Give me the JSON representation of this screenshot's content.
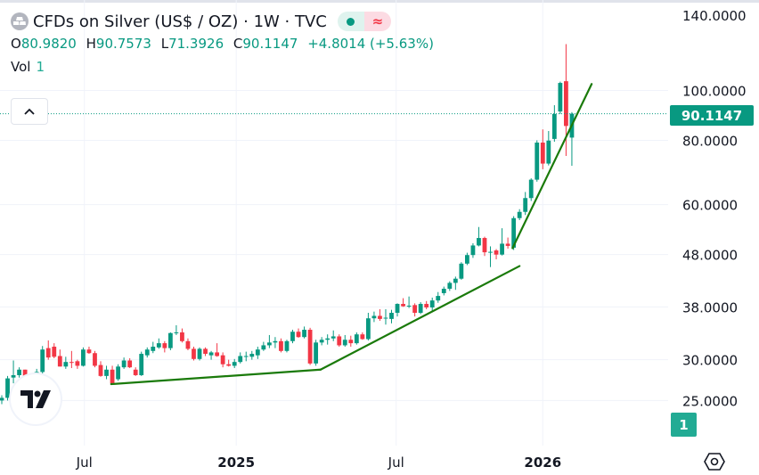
{
  "header": {
    "title": "CFDs on Silver (US$ / OZ) · 1W · TVC",
    "status_live_icon": "green-dot-icon",
    "status_delayed_icon": "wave-icon",
    "status_delayed_glyph": "≈",
    "ohlc": {
      "o_label": "O",
      "o_value": "80.9820",
      "h_label": "H",
      "h_value": "90.7573",
      "l_label": "L",
      "l_value": "71.3926",
      "c_label": "C",
      "c_value": "90.1147",
      "change": "+4.8014 (+5.63%)"
    },
    "vol_label": "Vol",
    "vol_value": "1",
    "collapse_glyph": "^"
  },
  "price_axis": {
    "last_price_label": "90.1147",
    "volume_badge": "1"
  },
  "logo_text": "TV",
  "colors": {
    "up": "#089981",
    "down": "#f23645",
    "trendline": "#1a7a0a",
    "grid": "#f0f3fa",
    "last": "#089981"
  },
  "chart_data": {
    "type": "candlestick",
    "title": "CFDs on Silver (US$ / OZ) · 1W · TVC",
    "y_scale": "log",
    "ylim": [
      22,
      140
    ],
    "y_ticks": [
      {
        "value": 140,
        "label": "140.0000"
      },
      {
        "value": 100,
        "label": "100.0000"
      },
      {
        "value": 80,
        "label": "80.0000"
      },
      {
        "value": 60,
        "label": "60.0000"
      },
      {
        "value": 48,
        "label": "48.0000"
      },
      {
        "value": 38,
        "label": "38.0000"
      },
      {
        "value": 30,
        "label": "30.0000"
      },
      {
        "value": 25,
        "label": "25.0000"
      }
    ],
    "x_ticks": [
      {
        "week": 14.2,
        "label": "Jul"
      },
      {
        "week": 40.3,
        "label": "2025"
      },
      {
        "week": 67.8,
        "label": "Jul"
      },
      {
        "week": 93,
        "label": "2026"
      }
    ],
    "last_price": 90.1147,
    "grid": true,
    "candle_fields": [
      "open",
      "high",
      "low",
      "close"
    ],
    "candles": [
      [
        25.0,
        25.6,
        24.6,
        25.3
      ],
      [
        25.3,
        27.9,
        25.0,
        27.6
      ],
      [
        27.7,
        29.9,
        27.0,
        28.0
      ],
      [
        28.0,
        29.0,
        27.7,
        28.7
      ],
      [
        28.7,
        28.7,
        27.2,
        27.4
      ],
      [
        27.4,
        28.0,
        26.8,
        27.6
      ],
      [
        27.6,
        28.8,
        27.4,
        28.4
      ],
      [
        28.4,
        31.9,
        28.2,
        31.4
      ],
      [
        31.6,
        32.7,
        30.0,
        30.3
      ],
      [
        31.8,
        32.3,
        30.2,
        30.4
      ],
      [
        30.5,
        31.4,
        29.1,
        29.1
      ],
      [
        29.1,
        30.4,
        28.8,
        29.7
      ],
      [
        29.7,
        31.2,
        28.9,
        29.6
      ],
      [
        29.8,
        30.0,
        28.8,
        29.2
      ],
      [
        29.2,
        31.7,
        29.1,
        31.4
      ],
      [
        31.4,
        31.8,
        30.8,
        30.9
      ],
      [
        30.9,
        31.2,
        29.0,
        29.2
      ],
      [
        29.3,
        29.8,
        27.8,
        27.9
      ],
      [
        27.9,
        29.2,
        27.5,
        28.7
      ],
      [
        28.7,
        29.2,
        26.8,
        27.0
      ],
      [
        27.5,
        29.4,
        27.3,
        29.1
      ],
      [
        29.0,
        30.3,
        28.8,
        29.9
      ],
      [
        29.9,
        30.2,
        28.9,
        29.0
      ],
      [
        28.7,
        29.0,
        27.9,
        28.0
      ],
      [
        28.0,
        31.1,
        27.9,
        30.8
      ],
      [
        30.6,
        31.7,
        30.3,
        31.4
      ],
      [
        31.2,
        32.5,
        30.9,
        31.8
      ],
      [
        31.7,
        33.0,
        31.5,
        32.3
      ],
      [
        32.3,
        32.6,
        31.0,
        31.6
      ],
      [
        31.6,
        33.9,
        31.3,
        33.8
      ],
      [
        33.8,
        35.0,
        33.5,
        33.9
      ],
      [
        33.9,
        34.5,
        32.4,
        32.6
      ],
      [
        32.6,
        33.0,
        31.3,
        31.5
      ],
      [
        31.5,
        31.8,
        29.9,
        30.1
      ],
      [
        30.1,
        31.7,
        29.9,
        31.5
      ],
      [
        31.5,
        31.7,
        30.5,
        30.8
      ],
      [
        30.6,
        31.2,
        30.0,
        31.0
      ],
      [
        31.0,
        32.3,
        30.4,
        30.5
      ],
      [
        30.6,
        31.0,
        29.0,
        29.4
      ],
      [
        29.4,
        30.0,
        29.1,
        29.2
      ],
      [
        29.2,
        30.1,
        28.9,
        29.7
      ],
      [
        29.7,
        31.0,
        29.5,
        30.5
      ],
      [
        30.5,
        31.1,
        29.8,
        30.5
      ],
      [
        30.4,
        31.2,
        30.0,
        30.8
      ],
      [
        30.6,
        31.8,
        30.1,
        31.4
      ],
      [
        31.4,
        32.5,
        31.2,
        32.0
      ],
      [
        32.0,
        33.5,
        31.6,
        32.4
      ],
      [
        32.4,
        33.2,
        31.6,
        32.6
      ],
      [
        32.6,
        33.0,
        31.0,
        31.2
      ],
      [
        31.2,
        32.8,
        31.0,
        32.6
      ],
      [
        32.6,
        34.3,
        32.3,
        34.0
      ],
      [
        34.0,
        34.5,
        33.1,
        33.2
      ],
      [
        33.2,
        34.8,
        33.0,
        34.3
      ],
      [
        34.3,
        34.6,
        29.3,
        29.5
      ],
      [
        29.5,
        32.8,
        29.2,
        32.4
      ],
      [
        32.4,
        33.2,
        32.0,
        32.8
      ],
      [
        32.8,
        33.6,
        32.1,
        33.0
      ],
      [
        33.0,
        34.2,
        32.6,
        33.3
      ],
      [
        33.3,
        33.6,
        31.8,
        32.0
      ],
      [
        32.0,
        33.5,
        31.8,
        32.8
      ],
      [
        32.8,
        33.4,
        31.8,
        32.3
      ],
      [
        32.3,
        33.9,
        32.1,
        33.6
      ],
      [
        33.6,
        33.9,
        32.8,
        32.9
      ],
      [
        32.9,
        37.0,
        32.7,
        36.1
      ],
      [
        36.1,
        37.2,
        35.5,
        36.5
      ],
      [
        36.5,
        37.6,
        35.7,
        36.0
      ],
      [
        36.1,
        37.6,
        35.1,
        36.2
      ],
      [
        36.0,
        37.5,
        35.3,
        37.0
      ],
      [
        37.0,
        38.6,
        36.4,
        38.5
      ],
      [
        38.5,
        39.5,
        38.0,
        38.1
      ],
      [
        38.1,
        39.8,
        37.8,
        38.2
      ],
      [
        38.3,
        38.6,
        36.4,
        37.0
      ],
      [
        37.0,
        38.8,
        36.8,
        38.5
      ],
      [
        38.5,
        39.0,
        37.6,
        37.9
      ],
      [
        37.9,
        39.6,
        37.1,
        39.1
      ],
      [
        39.1,
        40.6,
        38.7,
        39.9
      ],
      [
        40.4,
        41.6,
        40.0,
        41.2
      ],
      [
        41.2,
        42.6,
        40.8,
        42.3
      ],
      [
        42.3,
        43.5,
        41.0,
        43.1
      ],
      [
        43.1,
        46.4,
        42.9,
        46.1
      ],
      [
        46.1,
        48.4,
        45.8,
        47.9
      ],
      [
        47.9,
        50.5,
        47.3,
        50.0
      ],
      [
        50.0,
        54.3,
        49.8,
        51.7
      ],
      [
        51.7,
        52.0,
        47.7,
        48.5
      ],
      [
        48.4,
        49.8,
        45.4,
        48.6
      ],
      [
        48.9,
        49.2,
        47.0,
        48.0
      ],
      [
        48.0,
        54.0,
        47.8,
        50.4
      ],
      [
        50.4,
        51.8,
        49.3,
        49.9
      ],
      [
        49.5,
        57.0,
        49.0,
        56.5
      ],
      [
        56.5,
        58.8,
        56.0,
        58.1
      ],
      [
        58.1,
        63.5,
        57.3,
        61.8
      ],
      [
        61.8,
        67.5,
        61.0,
        67.1
      ],
      [
        67.1,
        80.0,
        66.5,
        79.2
      ],
      [
        79.2,
        84.0,
        70.3,
        72.1
      ],
      [
        72.1,
        83.4,
        71.5,
        79.9
      ],
      [
        80.5,
        93.6,
        79.5,
        90.0
      ],
      [
        91.0,
        104.0,
        90.0,
        103.4
      ],
      [
        104.2,
        123.0,
        74.6,
        85.3
      ],
      [
        80.982,
        90.7573,
        71.3926,
        90.1147
      ]
    ],
    "drawings": [
      {
        "type": "trendline",
        "from": [
          18.8,
          26.9
        ],
        "to": [
          54.8,
          28.7
        ]
      },
      {
        "type": "trendline",
        "from": [
          54.8,
          28.7
        ],
        "to": [
          89.0,
          45.6
        ]
      },
      {
        "type": "trendline",
        "from": [
          87.8,
          49.4
        ],
        "to": [
          101.4,
          102.9
        ]
      }
    ]
  }
}
